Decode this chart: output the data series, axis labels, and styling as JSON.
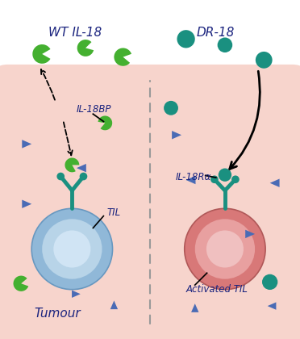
{
  "fig_width": 3.72,
  "fig_height": 4.2,
  "dpi": 100,
  "bg_color": "#ffffff",
  "tumour_bg_color": "#f7d4cc",
  "wt_title": "WT IL-18",
  "dr_title": "DR-18",
  "tumour_label": "Tumour",
  "til_label": "TIL",
  "activated_til_label": "Activated TIL",
  "il18bp_label": "IL-18BP",
  "il18ra_label": "IL-18Rα",
  "wt_green_color": "#44b030",
  "dr_teal_color": "#1a9080",
  "blue_triangle_color": "#4a6bb5",
  "receptor_color": "#1a9080",
  "til_cell_outer": "#90b8d8",
  "til_cell_inner": "#b8d4e8",
  "til_nucleus": "#d0e4f4",
  "activated_cell_outer": "#d87878",
  "activated_cell_inner": "#e8a0a0",
  "activated_nucleus": "#f0c0c0",
  "dashed_line_color": "#999999",
  "label_color": "#1a237e",
  "title_color": "#1a237e"
}
